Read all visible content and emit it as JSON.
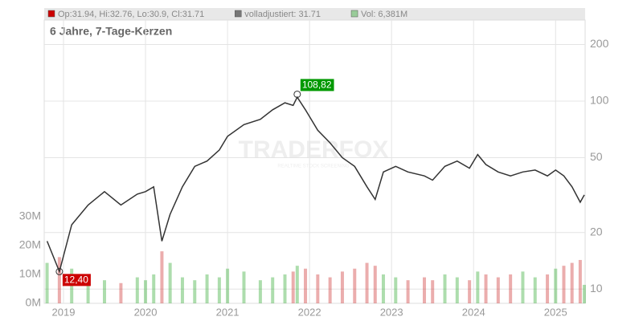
{
  "chart_data": {
    "type": "line",
    "title": "6 Jahre, 7-Tage-Kerzen",
    "legend": [
      {
        "label": "Op:31.94, Hi:32.76, Lo:30.9, Cl:31.71",
        "color": "#cc0000"
      },
      {
        "label": "volladjustiert: 31.71",
        "color": "#777777"
      },
      {
        "label": "Vol: 6,381M",
        "color": "#99cc99"
      }
    ],
    "watermark": {
      "brand": "TRADERFOX",
      "tagline": "REALTIME STOCK SCREENING"
    },
    "log_scale": true,
    "grid": true,
    "up_color": "#33aa33",
    "down_color": "#cc3333",
    "xlim": [
      2018.765,
      2025.36
    ],
    "xticks": [
      2019,
      2020,
      2021,
      2022,
      2023,
      2024,
      2025
    ],
    "ylim": [
      8.4,
      270
    ],
    "yticks": [
      10,
      20,
      50,
      100,
      200
    ],
    "y2lim": [
      0,
      98
    ],
    "y2ticks": [
      {
        "value": 0,
        "label": "0M"
      },
      {
        "value": 10,
        "label": "10M"
      },
      {
        "value": 20,
        "label": "20M"
      },
      {
        "value": 30,
        "label": "30M"
      }
    ],
    "x": [
      2018.8,
      2018.95,
      2019.1,
      2019.3,
      2019.5,
      2019.7,
      2019.9,
      2020.0,
      2020.1,
      2020.2,
      2020.3,
      2020.45,
      2020.6,
      2020.75,
      2020.9,
      2021.0,
      2021.2,
      2021.4,
      2021.55,
      2021.7,
      2021.8,
      2021.85,
      2021.95,
      2022.1,
      2022.25,
      2022.4,
      2022.55,
      2022.7,
      2022.8,
      2022.9,
      2023.05,
      2023.2,
      2023.4,
      2023.5,
      2023.65,
      2023.8,
      2023.95,
      2024.05,
      2024.15,
      2024.3,
      2024.45,
      2024.6,
      2024.75,
      2024.9,
      2025.0,
      2025.1,
      2025.2,
      2025.3,
      2025.35
    ],
    "series": [
      {
        "color": "#333333",
        "values": [
          18,
          12.4,
          22,
          28,
          33,
          28,
          32,
          33,
          35,
          18,
          25,
          35,
          45,
          48,
          55,
          65,
          75,
          80,
          90,
          98,
          95,
          105,
          90,
          70,
          60,
          50,
          45,
          35,
          30,
          42,
          45,
          42,
          40,
          38,
          45,
          48,
          44,
          52,
          46,
          42,
          40,
          42,
          43,
          40,
          43,
          40,
          35,
          29,
          31.7
        ]
      },
      {
        "type": "bar",
        "axis": "y2",
        "color": "#99cc99",
        "values": [
          14,
          16,
          12,
          10,
          8,
          7,
          9,
          8,
          10,
          18,
          14,
          9,
          8,
          10,
          9,
          12,
          11,
          8,
          9,
          10,
          11,
          13,
          12,
          10,
          9,
          11,
          12,
          14,
          13,
          10,
          9,
          8,
          9,
          8,
          10,
          9,
          8,
          11,
          10,
          9,
          10,
          11,
          9,
          10,
          12,
          13,
          14,
          15,
          6.4
        ]
      }
    ],
    "annotations": [
      {
        "x": 2021.85,
        "value": 108.82,
        "label": "108,82",
        "color": "#009900"
      },
      {
        "x": 2018.95,
        "value": 12.4,
        "label": "12,40",
        "color": "#cc0000"
      }
    ]
  }
}
